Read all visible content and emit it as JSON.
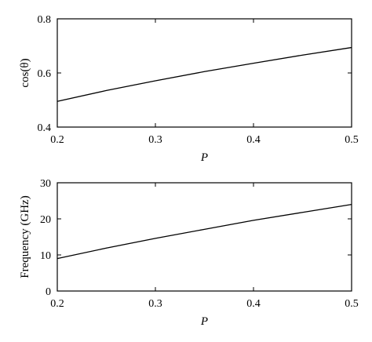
{
  "chart_data": [
    {
      "type": "line",
      "xlabel": "P",
      "ylabel": "cos(θ)",
      "xlim": [
        0.2,
        0.5
      ],
      "ylim": [
        0.4,
        0.8
      ],
      "xticks": [
        0.2,
        0.3,
        0.4,
        0.5
      ],
      "yticks": [
        0.4,
        0.6,
        0.8
      ],
      "xtick_labels": [
        "0.2",
        "0.3",
        "0.4",
        "0.5"
      ],
      "ytick_labels": [
        "0.4",
        "0.6",
        "0.8"
      ],
      "grid": false,
      "series": [
        {
          "x": [
            0.2,
            0.25,
            0.3,
            0.35,
            0.4,
            0.45,
            0.5
          ],
          "y": [
            0.495,
            0.535,
            0.571,
            0.605,
            0.636,
            0.666,
            0.694
          ]
        }
      ]
    },
    {
      "type": "line",
      "xlabel": "P",
      "ylabel": "Frequency (GHz)",
      "xlim": [
        0.2,
        0.5
      ],
      "ylim": [
        0,
        30
      ],
      "xticks": [
        0.2,
        0.3,
        0.4,
        0.5
      ],
      "yticks": [
        0,
        10,
        20,
        30
      ],
      "xtick_labels": [
        "0.2",
        "0.3",
        "0.4",
        "0.5"
      ],
      "ytick_labels": [
        "0",
        "10",
        "20",
        "30"
      ],
      "grid": false,
      "series": [
        {
          "x": [
            0.2,
            0.25,
            0.3,
            0.35,
            0.4,
            0.45,
            0.5
          ],
          "y": [
            9.0,
            11.9,
            14.6,
            17.1,
            19.6,
            21.8,
            24.0
          ]
        }
      ]
    }
  ]
}
